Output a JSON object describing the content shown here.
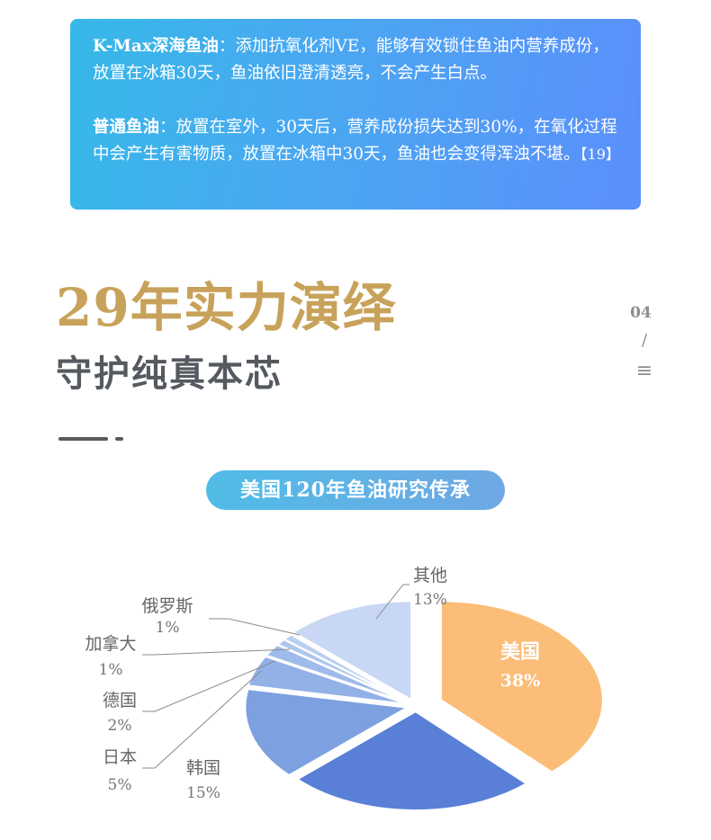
{
  "info": {
    "p1_title": "K-Max深海鱼油",
    "p1_body": "：添加抗氧化剂VE，能够有效锁住鱼油内营养成份，放置在冰箱30天，鱼油依旧澄清透亮，不会产生白点。",
    "p2_title": "普通鱼油",
    "p2_body": "：放置在室外，30天后，营养成份损失达到30%，在氧化过程中会产生有害物质，放置在冰箱中30天，鱼油也会变得浑浊不堪。",
    "p2_ref": "【19】"
  },
  "heading": {
    "line1": "29年实力演绎",
    "line2": "守护纯真本芯"
  },
  "page_marker": {
    "number": "04",
    "slash": "/",
    "menu_icon": "≡"
  },
  "pill_label": "美国120年鱼油研究传承",
  "colors": {
    "gold": "#c8a25a",
    "box_start": "#36b8e8",
    "box_end": "#5b8ffb"
  },
  "chart_data": {
    "type": "pie",
    "title": "",
    "slices": [
      {
        "label": "美国",
        "value": 38,
        "value_label": "38%",
        "color": "#fbbd78"
      },
      {
        "label": "",
        "value": 25,
        "value_label": "",
        "color": "#5a7fd7"
      },
      {
        "label": "韩国",
        "value": 15,
        "value_label": "15%",
        "color": "#7da1e0"
      },
      {
        "label": "日本",
        "value": 5,
        "value_label": "5%",
        "color": "#92b1e7"
      },
      {
        "label": "德国",
        "value": 2,
        "value_label": "2%",
        "color": "#9fbbeb"
      },
      {
        "label": "加拿大",
        "value": 1,
        "value_label": "1%",
        "color": "#aec6ee"
      },
      {
        "label": "俄罗斯",
        "value": 1,
        "value_label": "1%",
        "color": "#b9cef0"
      },
      {
        "label": "其他",
        "value": 13,
        "value_label": "13%",
        "color": "#c8d7f4"
      }
    ]
  }
}
